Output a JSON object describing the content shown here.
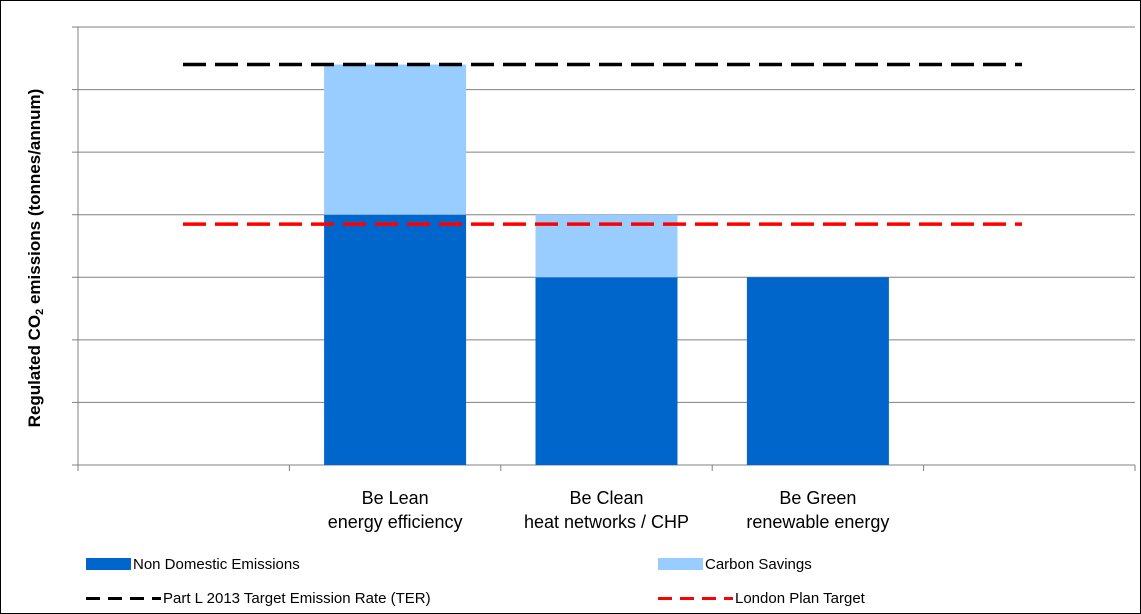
{
  "chart_data": {
    "type": "bar",
    "stacked": true,
    "categories": [
      {
        "line1": "",
        "line2": ""
      },
      {
        "line1": "Be Lean",
        "line2": "energy efficiency"
      },
      {
        "line1": "Be Clean",
        "line2": "heat networks / CHP"
      },
      {
        "line1": "Be Green",
        "line2": "renewable energy"
      },
      {
        "line1": "",
        "line2": ""
      }
    ],
    "ylabel": {
      "pre": "Regulated CO",
      "sub": "2",
      "post": " emissions (tonnes/annum)"
    },
    "ylim": [
      0,
      7
    ],
    "grid": true,
    "y_tick_labels_shown": false,
    "series": [
      {
        "name": "Non Domestic Emissions",
        "color": "#0066CC",
        "values": [
          null,
          4.0,
          3.0,
          3.0,
          null
        ]
      },
      {
        "name": "Carbon Savings",
        "color": "#99CCFF",
        "values": [
          null,
          2.4,
          1.0,
          0,
          null
        ]
      }
    ],
    "reference_lines": [
      {
        "name": "Part L 2013 Target Emission Rate (TER)",
        "value": 6.4,
        "color": "#000000",
        "style": "dashed"
      },
      {
        "name": "London Plan Target",
        "value": 3.85,
        "color": "#FF0000",
        "style": "dashed"
      }
    ],
    "legend_position": "bottom"
  }
}
